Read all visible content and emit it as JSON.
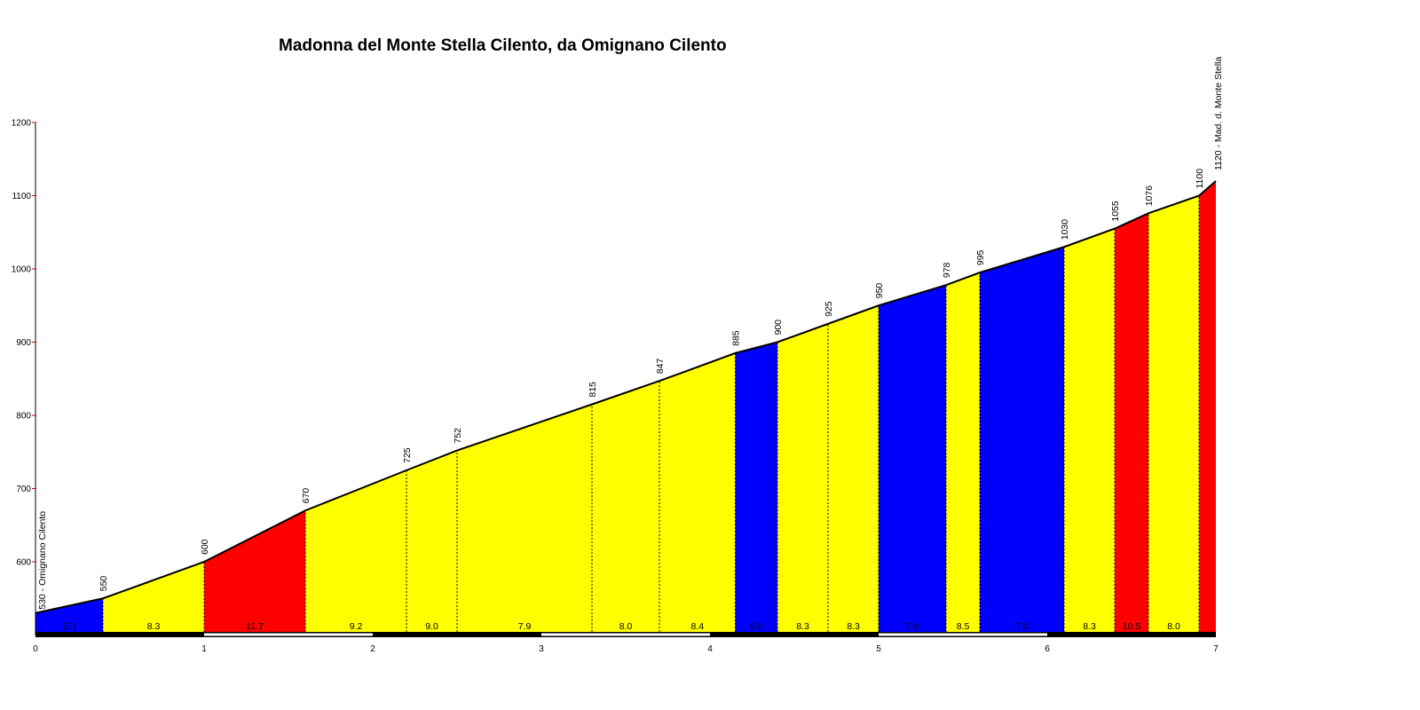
{
  "chart_data": {
    "type": "area",
    "title": "Madonna del Monte Stella Cilento, da Omignano Cilento",
    "xlabel": "",
    "ylabel": "",
    "xlim": [
      0,
      7
    ],
    "ylim": [
      500,
      1200
    ],
    "x_ticks": [
      "0",
      "1",
      "2",
      "3",
      "4",
      "5",
      "6",
      "7"
    ],
    "y_ticks": [
      "600",
      "700",
      "800",
      "900",
      "1000",
      "1100",
      "1200"
    ],
    "points": [
      {
        "x": 0.0,
        "y": 530,
        "label": "530 - Omignano Cilento"
      },
      {
        "x": 0.4,
        "y": 550,
        "label": "550"
      },
      {
        "x": 1.0,
        "y": 600,
        "label": "600"
      },
      {
        "x": 1.6,
        "y": 670,
        "label": "670"
      },
      {
        "x": 2.2,
        "y": 725,
        "label": "725"
      },
      {
        "x": 2.5,
        "y": 752,
        "label": "752"
      },
      {
        "x": 3.3,
        "y": 815,
        "label": "815"
      },
      {
        "x": 3.7,
        "y": 847,
        "label": "847"
      },
      {
        "x": 4.15,
        "y": 885,
        "label": "885"
      },
      {
        "x": 4.4,
        "y": 900,
        "label": "900"
      },
      {
        "x": 4.7,
        "y": 925,
        "label": "925"
      },
      {
        "x": 5.0,
        "y": 950,
        "label": "950"
      },
      {
        "x": 5.4,
        "y": 978,
        "label": "978"
      },
      {
        "x": 5.6,
        "y": 995,
        "label": "995"
      },
      {
        "x": 6.1,
        "y": 1030,
        "label": "1030"
      },
      {
        "x": 6.4,
        "y": 1055,
        "label": "1055"
      },
      {
        "x": 6.6,
        "y": 1076,
        "label": "1076"
      },
      {
        "x": 6.9,
        "y": 1100,
        "label": "1100"
      },
      {
        "x": 7.0,
        "y": 1120,
        "label": "1120 - Mad. d. Monte Stella"
      }
    ],
    "segments": [
      {
        "from": 0.0,
        "to": 0.4,
        "gradient": "5.0",
        "color": "#0000ff"
      },
      {
        "from": 0.4,
        "to": 1.0,
        "gradient": "8.3",
        "color": "#ffff00"
      },
      {
        "from": 1.0,
        "to": 1.6,
        "gradient": "11.7",
        "color": "#ff0000"
      },
      {
        "from": 1.6,
        "to": 2.2,
        "gradient": "9.2",
        "color": "#ffff00"
      },
      {
        "from": 2.2,
        "to": 2.5,
        "gradient": "9.0",
        "color": "#ffff00"
      },
      {
        "from": 2.5,
        "to": 3.3,
        "gradient": "7.9",
        "color": "#ffff00"
      },
      {
        "from": 3.3,
        "to": 3.7,
        "gradient": "8.0",
        "color": "#ffff00"
      },
      {
        "from": 3.7,
        "to": 4.15,
        "gradient": "8.4",
        "color": "#ffff00"
      },
      {
        "from": 4.15,
        "to": 4.4,
        "gradient": "6.0",
        "color": "#0000ff"
      },
      {
        "from": 4.4,
        "to": 4.7,
        "gradient": "8.3",
        "color": "#ffff00"
      },
      {
        "from": 4.7,
        "to": 5.0,
        "gradient": "8.3",
        "color": "#ffff00"
      },
      {
        "from": 5.0,
        "to": 5.4,
        "gradient": "7.0",
        "color": "#0000ff"
      },
      {
        "from": 5.4,
        "to": 5.6,
        "gradient": "8.5",
        "color": "#ffff00"
      },
      {
        "from": 5.6,
        "to": 6.1,
        "gradient": "7.0",
        "color": "#0000ff"
      },
      {
        "from": 6.1,
        "to": 6.4,
        "gradient": "8.3",
        "color": "#ffff00"
      },
      {
        "from": 6.4,
        "to": 6.6,
        "gradient": "10.5",
        "color": "#ff0000"
      },
      {
        "from": 6.6,
        "to": 6.9,
        "gradient": "8.0",
        "color": "#ffff00"
      },
      {
        "from": 6.9,
        "to": 7.0,
        "gradient": "",
        "color": "#ff0000"
      }
    ],
    "colors": {
      "blue": "#0000ff",
      "yellow": "#ffff00",
      "red": "#ff0000",
      "axis_tick": "#cc0000"
    }
  }
}
